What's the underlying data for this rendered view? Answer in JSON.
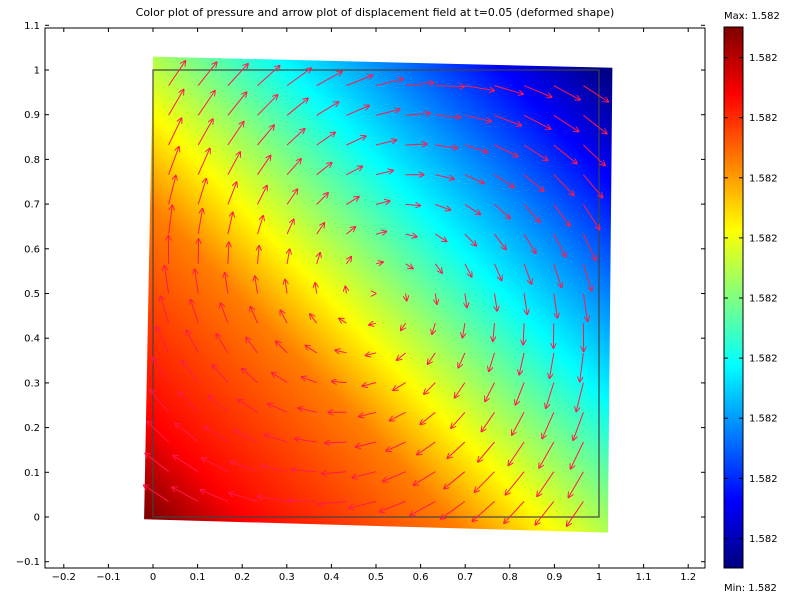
{
  "chart_data": {
    "type": "heatmap",
    "title": "Color plot of pressure  and arrow plot of displacement field at t=0.05 (deformed shape)",
    "xlabel": "",
    "ylabel": "",
    "xlim": [
      -0.25,
      1.25
    ],
    "ylim": [
      -0.1,
      1.1
    ],
    "x_ticks": [
      -0.2,
      -0.1,
      0,
      0.1,
      0.2,
      0.3,
      0.4,
      0.5,
      0.6,
      0.7,
      0.8,
      0.9,
      1,
      1.1,
      1.2
    ],
    "x_tick_labels": [
      "−0.2",
      "−0.1",
      "0",
      "0.1",
      "0.2",
      "0.3",
      "0.4",
      "0.5",
      "0.6",
      "0.7",
      "0.8",
      "0.9",
      "1",
      "1.1",
      "1.2"
    ],
    "y_ticks": [
      -0.1,
      0,
      0.1,
      0.2,
      0.3,
      0.4,
      0.5,
      0.6,
      0.7,
      0.8,
      0.9,
      1,
      1.1
    ],
    "y_tick_labels": [
      "−0.1",
      "0",
      "0.1",
      "0.2",
      "0.3",
      "0.4",
      "0.5",
      "0.6",
      "0.7",
      "0.8",
      "0.9",
      "1",
      "1.1"
    ],
    "grid": false,
    "colormap": "jet",
    "field": "pressure, highest at bottom-left corner (0,0), lowest at top-right corner (1,1)",
    "undeformed_domain": {
      "x": [
        0,
        1
      ],
      "y": [
        0,
        1
      ],
      "outline_color": "#444444"
    },
    "deformed_domain": {
      "corners": [
        [
          -0.02,
          -0.005
        ],
        [
          1.02,
          -0.035
        ],
        [
          1.03,
          1.005
        ],
        [
          0.0,
          1.03
        ]
      ]
    },
    "arrows": {
      "color": "#ff1a4a",
      "grid": "15 x 15 over unit square",
      "pattern": "vortex-like: up/left along left edge, right along top edge, down along right edge, small near center"
    },
    "colorbar": {
      "max_label": "Max: 1.582",
      "min_label": "Min: 1.582",
      "tick_labels": [
        "1.582",
        "1.582",
        "1.582",
        "1.582",
        "1.582",
        "1.582",
        "1.582",
        "1.582",
        "1.582"
      ]
    }
  }
}
